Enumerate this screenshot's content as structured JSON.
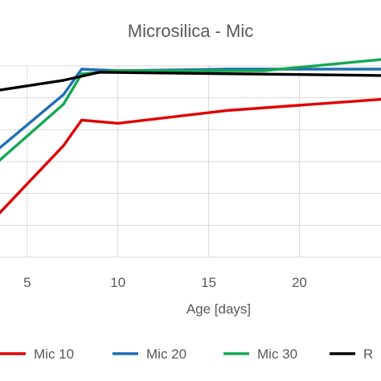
{
  "chart_data": {
    "type": "line",
    "title": "Microsilica - Mic",
    "xlabel": "Age [days]",
    "ylabel": "",
    "xlim": [
      3.5,
      24.5
    ],
    "ylim": [
      0,
      6
    ],
    "x_ticks": [
      "5",
      "10",
      "15",
      "20"
    ],
    "x_tick_values": [
      5,
      10,
      15,
      20
    ],
    "grid": true,
    "legend_placement": "bottom",
    "series": [
      {
        "name": "Mic 10",
        "color": "#e00000",
        "x": [
          3,
          7,
          8,
          10,
          16,
          24.5
        ],
        "y": [
          1.1,
          3.5,
          4.3,
          4.2,
          4.6,
          4.95
        ]
      },
      {
        "name": "Mic 20",
        "color": "#1f6fb4",
        "x": [
          3,
          7,
          8,
          10,
          16,
          24.5
        ],
        "y": [
          3.2,
          5.1,
          5.9,
          5.85,
          5.9,
          5.9
        ]
      },
      {
        "name": "Mic 30",
        "color": "#14a852",
        "x": [
          3,
          7,
          8,
          10,
          18,
          24.5
        ],
        "y": [
          2.8,
          4.8,
          5.75,
          5.85,
          5.85,
          6.2
        ]
      },
      {
        "name": "R",
        "color": "#000000",
        "x": [
          3,
          7,
          9,
          24.5
        ],
        "y": [
          5.2,
          5.55,
          5.8,
          5.7
        ]
      }
    ]
  }
}
